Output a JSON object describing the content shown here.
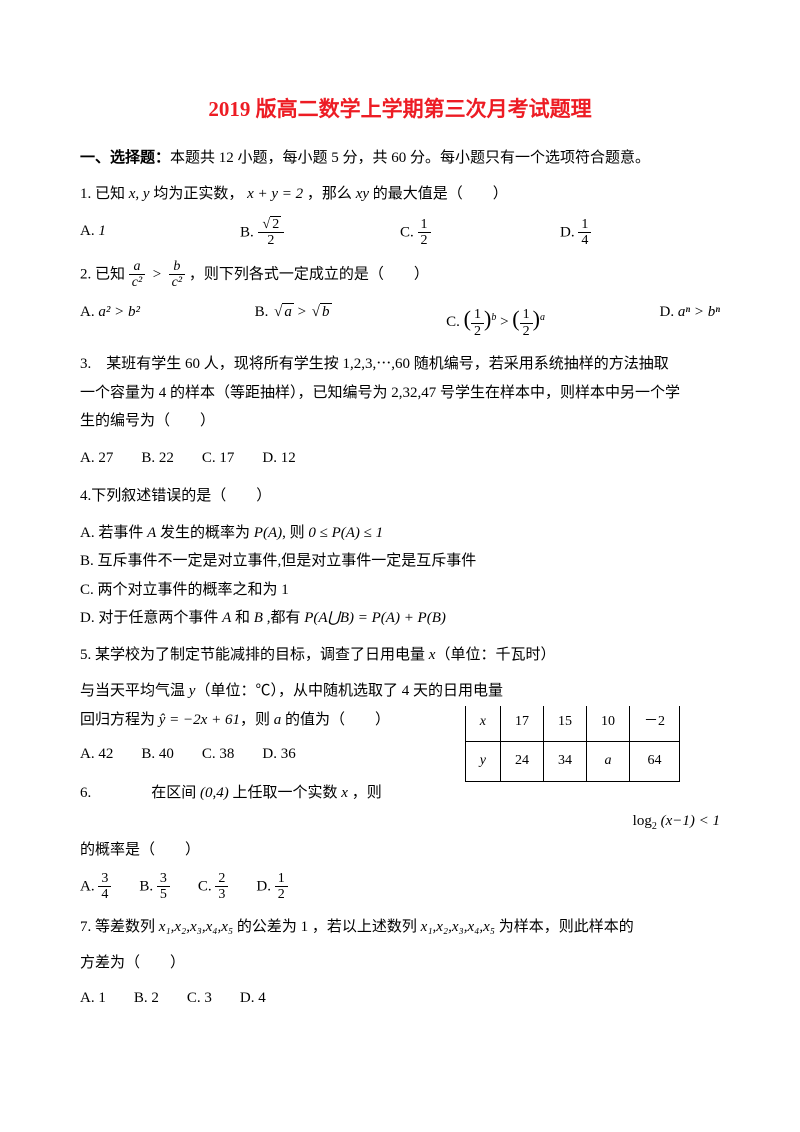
{
  "title": "2019 版高二数学上学期第三次月考试题理",
  "section1": {
    "heading": "一、选择题：",
    "desc": "本题共 12 小题，每小题 5 分，共 60 分。每小题只有一个选项符合题意。"
  },
  "q1": {
    "stem_a": "1. 已知",
    "stem_b": "均为正实数，",
    "stem_c": "，那么",
    "stem_d": "的最大值是（　　）",
    "xy": "x, y",
    "eq": "x + y = 2",
    "xyprod": "xy",
    "A": "1",
    "B_num": "√2",
    "B_den": "2",
    "C_num": "1",
    "C_den": "2",
    "D_num": "1",
    "D_den": "4"
  },
  "q2": {
    "stem_a": "2. 已知",
    "stem_b": "，则下列各式一定成立的是（　　）",
    "frac_l_num": "a",
    "frac_l_den": "c²",
    "frac_r_num": "b",
    "frac_r_den": "c²",
    "A": "a² > b²",
    "B_l": "a",
    "B_r": "b",
    "C_l": "b",
    "C_r": "a",
    "D": "aⁿ > bⁿ"
  },
  "q3": {
    "line1": "3.　某班有学生 60 人，现将所有学生按 1,2,3,⋯,60 随机编号，若采用系统抽样的方法抽取",
    "line2": "一个容量为 4 的样本（等距抽样），已知编号为 2,32,47 号学生在样本中，则样本中另一个学",
    "line3": "生的编号为（　　）",
    "A": "27",
    "B": "22",
    "C": "17",
    "D": "12"
  },
  "q4": {
    "stem": "4.下列叙述错误的是（　　）",
    "A_a": "A. 若事件 ",
    "A_mid": " 发生的概率为 ",
    "A_b": ", 则 ",
    "A_ev": "A",
    "A_PA": "P(A)",
    "A_ineq": "0 ≤ P(A) ≤ 1",
    "B": "B. 互斥事件不一定是对立事件,但是对立事件一定是互斥事件",
    "C": "C. 两个对立事件的概率之和为 1",
    "D_a": "D. 对于任意两个事件 ",
    "D_and": " 和 ",
    "D_b": " ,都有 ",
    "D_A": "A",
    "D_B": "B",
    "D_eq": "P(A⋃B) = P(A) + P(B)"
  },
  "q5": {
    "line1_a": "5. 某学校为了制定节能减排的目标，调查了日用电量 ",
    "line1_x": "x",
    "line1_b": "（单位：千瓦时）",
    "line2_a": "与当天平均气温 ",
    "line2_y": "y",
    "line2_b": "（单位：℃），从中随机选取了 4 天的日用电量",
    "line3_a": "回归方程为 ",
    "line3_eq": "ŷ = −2x + 61",
    "line3_b": "，则 ",
    "line3_a2": "a",
    "line3_c": " 的值为（　　）",
    "A": "42",
    "B": "40",
    "C": "38",
    "D": "36",
    "table": {
      "r1": [
        "x",
        "17",
        "15",
        "10",
        "－2"
      ],
      "r2": [
        "y",
        "24",
        "34",
        "a",
        "64"
      ]
    }
  },
  "q6": {
    "stem_a": "6.　　　　在区间 ",
    "interval": "(0,4)",
    "stem_b": " 上任取一个实数 ",
    "x": "x",
    "stem_c": " ，则",
    "tail_a": "log",
    "tail_sub": "2",
    "tail_b": "(x−1) < 1",
    "line2": "的概率是（　　）",
    "A_num": "3",
    "A_den": "4",
    "B_num": "3",
    "B_den": "5",
    "C_num": "2",
    "C_den": "3",
    "D_num": "1",
    "D_den": "2"
  },
  "q7": {
    "line1_a": "7. 等差数列 ",
    "seq": "x₁,x₂,x₃,x₄,x₅",
    "line1_b": " 的公差为 1 ，若以上述数列 ",
    "line1_c": " 为样本，则此样本的",
    "line2": "方差为（　　）",
    "A": "1",
    "B": "2",
    "C": "3",
    "D": "4"
  }
}
